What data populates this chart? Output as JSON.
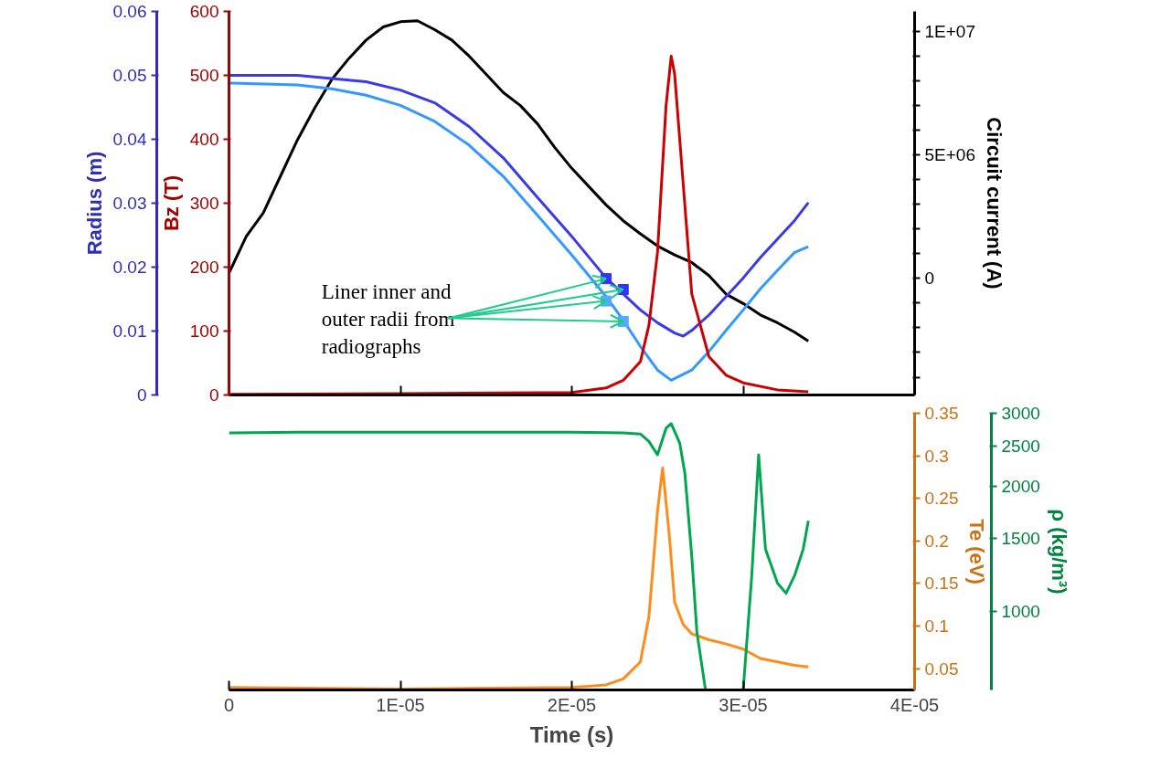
{
  "chart_data": [
    {
      "type": "line",
      "xlim": [
        0,
        4e-05
      ],
      "tick_labels": "y",
      "xticks": [
        {
          "value": 0,
          "label": "0"
        },
        {
          "value": 1e-05,
          "label": "1E-05"
        },
        {
          "value": 2e-05,
          "label": "2E-05"
        },
        {
          "value": 3e-05,
          "label": "3E-05"
        },
        {
          "value": 4e-05,
          "label": "4E-05"
        }
      ],
      "ylabel": "Radius (m)",
      "ylim": [
        0,
        0.06
      ],
      "yticks": [
        0,
        0.01,
        0.02,
        0.03,
        0.04,
        0.05,
        0.06
      ],
      "y2label": "Bz (T)",
      "y2lim": [
        0,
        600
      ],
      "y2ticks": [
        0,
        100,
        200,
        300,
        400,
        500,
        600
      ],
      "y3label": "Circuit current (A)",
      "y3lim": [
        -4720000,
        10800000
      ],
      "y3ticks": [
        {
          "value": -4000000,
          "label": null
        },
        {
          "value": -3000000,
          "label": null
        },
        {
          "value": -2000000,
          "label": null
        },
        {
          "value": -1000000,
          "label": null
        },
        {
          "value": 0,
          "label": "0"
        },
        {
          "value": 1000000,
          "label": null
        },
        {
          "value": 2000000,
          "label": null
        },
        {
          "value": 3000000,
          "label": null
        },
        {
          "value": 4000000,
          "label": null
        },
        {
          "value": 5000000,
          "label": "5E+06"
        },
        {
          "value": 6000000,
          "label": null
        },
        {
          "value": 7000000,
          "label": null
        },
        {
          "value": 8000000,
          "label": null
        },
        {
          "value": 9000000,
          "label": null
        },
        {
          "value": 10000000,
          "label": "1E+07"
        }
      ],
      "grid": false,
      "annotations": [
        {
          "text": "Liner inner and outer radii from radiographs",
          "x": 2.2e-05,
          "y": 0.0182
        }
      ],
      "series": [
        {
          "color": "#000000",
          "axis": "y3",
          "x": [
            0,
            1e-06,
            2e-06,
            3e-06,
            4e-06,
            5e-06,
            6e-06,
            7e-06,
            8e-06,
            9e-06,
            1e-05,
            1.1e-05,
            1.2e-05,
            1.3e-05,
            1.4e-05,
            1.5e-05,
            1.6e-05,
            1.7e-05,
            1.8e-05,
            1.9e-05,
            2e-05,
            2.1e-05,
            2.2e-05,
            2.3e-05,
            2.4e-05,
            2.5e-05,
            2.6e-05,
            2.7e-05,
            2.8e-05,
            2.9e-05,
            3e-05,
            3.1e-05,
            3.2e-05,
            3.3e-05,
            3.38e-05
          ],
          "values": [
            210000,
            1690000,
            2650000,
            4130000,
            5610000,
            6890000,
            8050000,
            8900000,
            9640000,
            10170000,
            10380000,
            10420000,
            10060000,
            9640000,
            9000000,
            8260000,
            7520000,
            6990000,
            6250000,
            5300000,
            4450000,
            3710000,
            2970000,
            2330000,
            1800000,
            1310000,
            950000,
            640000,
            110000,
            -640000,
            -1020000,
            -1480000,
            -1800000,
            -2180000,
            -2540000
          ]
        },
        {
          "color": "#3a3ae6",
          "x": [
            0,
            4e-06,
            8e-06,
            1e-05,
            1.2e-05,
            1.4e-05,
            1.6e-05,
            1.8e-05,
            2e-05,
            2.2e-05,
            2.3e-05,
            2.4e-05,
            2.5e-05,
            2.6e-05,
            2.65e-05,
            2.7e-05,
            2.8e-05,
            2.9e-05,
            3e-05,
            3.1e-05,
            3.2e-05,
            3.3e-05,
            3.38e-05
          ],
          "values": [
            0.05,
            0.05,
            0.049,
            0.0477,
            0.0457,
            0.042,
            0.0371,
            0.0309,
            0.0248,
            0.0183,
            0.0158,
            0.0133,
            0.0113,
            0.0097,
            0.0092,
            0.0101,
            0.0125,
            0.0154,
            0.0183,
            0.0215,
            0.0244,
            0.0273,
            0.0301
          ]
        },
        {
          "color": "#3399ff",
          "x": [
            0,
            4e-06,
            6e-06,
            8e-06,
            1e-05,
            1.2e-05,
            1.4e-05,
            1.6e-05,
            1.8e-05,
            2e-05,
            2.2e-05,
            2.3e-05,
            2.4e-05,
            2.5e-05,
            2.58e-05,
            2.7e-05,
            2.8e-05,
            2.9e-05,
            3e-05,
            3.1e-05,
            3.2e-05,
            3.3e-05,
            3.38e-05
          ],
          "values": [
            0.0488,
            0.0485,
            0.0479,
            0.0469,
            0.0453,
            0.0428,
            0.0391,
            0.0342,
            0.0281,
            0.0219,
            0.0154,
            0.0117,
            0.0076,
            0.0039,
            0.0023,
            0.0039,
            0.0068,
            0.0101,
            0.0133,
            0.0166,
            0.0195,
            0.0223,
            0.0232
          ]
        },
        {
          "type": "scatter",
          "marker": "square",
          "x": [
            2.2e-05,
            2.3e-05,
            2.2e-05,
            2.3e-05
          ],
          "values": [
            0.0182,
            0.0165,
            0.0147,
            0.0115
          ],
          "colors": [
            "#3333ff",
            "#3333ff",
            "#55aaff",
            "#55aaff"
          ]
        },
        {
          "color": "#cc0000",
          "axis": "y2",
          "x": [
            0,
            1e-05,
            2e-05,
            2.2e-05,
            2.3e-05,
            2.4e-05,
            2.45e-05,
            2.5e-05,
            2.55e-05,
            2.58e-05,
            2.6e-05,
            2.65e-05,
            2.7e-05,
            2.8e-05,
            2.9e-05,
            3e-05,
            3.2e-05,
            3.38e-05
          ],
          "values": [
            1,
            2,
            4,
            11,
            23,
            52,
            109,
            223,
            453,
            530,
            502,
            330,
            158,
            60,
            31,
            19,
            8,
            5
          ]
        }
      ]
    },
    {
      "type": "line",
      "xlabel": "Time (s)",
      "xlim": [
        0,
        4e-05
      ],
      "xticks": [
        {
          "value": 0,
          "label": "0"
        },
        {
          "value": 1e-05,
          "label": "1E-05"
        },
        {
          "value": 2e-05,
          "label": "2E-05"
        },
        {
          "value": 3e-05,
          "label": "3E-05"
        },
        {
          "value": 4e-05,
          "label": "4E-05"
        }
      ],
      "ylabel": "Te (eV)",
      "ylim": [
        0.025,
        0.35
      ],
      "yticks": [
        0.05,
        0.1,
        0.15,
        0.2,
        0.25,
        0.3,
        0.35
      ],
      "y2label": "ρ (kg/m³)",
      "y2lim": [
        647,
        3000
      ],
      "y2ticks": [
        1000,
        1500,
        2000,
        2500,
        3000
      ],
      "log": "y2",
      "grid": false,
      "series": [
        {
          "color": "#ff8c1a",
          "x": [
            0,
            1e-05,
            2e-05,
            2.2e-05,
            2.3e-05,
            2.4e-05,
            2.45e-05,
            2.5e-05,
            2.53e-05,
            2.57e-05,
            2.6e-05,
            2.65e-05,
            2.7e-05,
            2.8e-05,
            2.9e-05,
            3e-05,
            3.1e-05,
            3.2e-05,
            3.3e-05,
            3.38e-05
          ],
          "values": [
            0.028,
            0.026,
            0.028,
            0.031,
            0.038,
            0.058,
            0.111,
            0.235,
            0.286,
            0.204,
            0.128,
            0.102,
            0.091,
            0.084,
            0.079,
            0.073,
            0.062,
            0.058,
            0.054,
            0.052
          ]
        },
        {
          "color": "#00a650",
          "axis": "y2",
          "x": [
            0,
            4e-06,
            2e-05,
            2.3e-05,
            2.4e-05,
            2.45e-05,
            2.5e-05,
            2.55e-05,
            2.58e-05,
            2.63e-05,
            2.66e-05,
            2.7e-05,
            2.73e-05,
            2.78e-05,
            2.9e-05,
            3e-05,
            3.05e-05,
            3.09e-05,
            3.13e-05,
            3.2e-05,
            3.25e-05,
            3.3e-05,
            3.35e-05,
            3.38e-05
          ],
          "values": [
            2690,
            2700,
            2700,
            2690,
            2674,
            2566,
            2383,
            2760,
            2832,
            2539,
            2147,
            1355,
            891,
            647,
            null,
            647,
            1220,
            2383,
            1412,
            1170,
            1106,
            1220,
            1412,
            1652
          ]
        }
      ]
    }
  ]
}
